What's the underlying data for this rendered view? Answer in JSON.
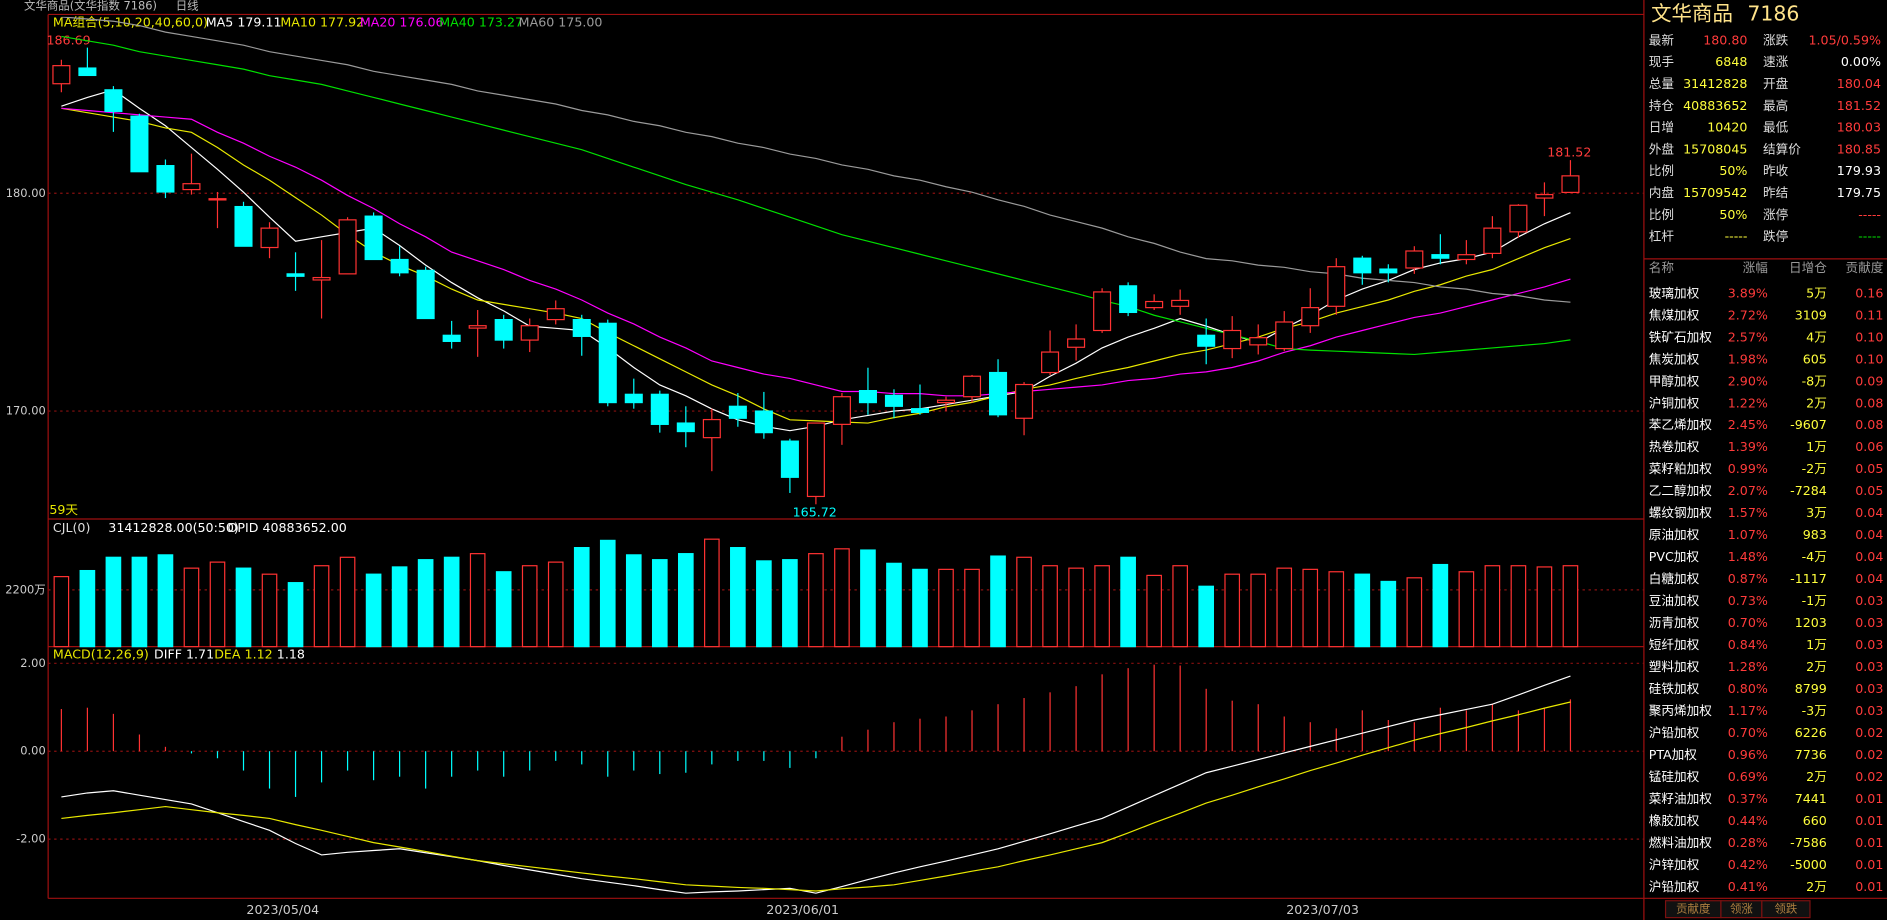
{
  "header": {
    "title": "文华商品(文华指数 7186)",
    "period": "日线"
  },
  "main_chart": {
    "legend_title": "MA组合(5,10,20,40,60,0)",
    "ylim": [
      165.1,
      188.1
    ],
    "yticks": [
      {
        "value": 180,
        "label": "180.00"
      },
      {
        "value": 170,
        "label": "170.00"
      }
    ],
    "annotations": {
      "high": "186.69",
      "last_high": "181.52",
      "low": "165.72",
      "days": "59天"
    },
    "candles": {
      "open": [
        185.03,
        185.75,
        184.75,
        183.54,
        181.27,
        180.17,
        179.7,
        179.39,
        177.51,
        176.3,
        176.02,
        176.3,
        178.95,
        176.96,
        176.46,
        173.48,
        173.81,
        174.2,
        173.26,
        174.2,
        174.2,
        174.03,
        170.77,
        170.77,
        169.45,
        168.78,
        170.22,
        170.0,
        168.62,
        166.08,
        169.39,
        170.94,
        170.72,
        170.11,
        170.39,
        170.66,
        171.77,
        169.67,
        171.77,
        172.93,
        173.7,
        175.75,
        174.75,
        174.81,
        173.48,
        172.87,
        173.04,
        172.87,
        173.92,
        174.81,
        177.02,
        176.52,
        176.57,
        177.18,
        176.96,
        177.24,
        178.23,
        179.78,
        180.04
      ],
      "high": [
        186.13,
        186.69,
        184.92,
        183.65,
        181.55,
        181.82,
        180.06,
        179.61,
        178.67,
        177.29,
        177.85,
        178.9,
        179.12,
        177.57,
        176.63,
        174.14,
        174.64,
        174.42,
        174.25,
        175.08,
        174.42,
        174.2,
        171.49,
        170.94,
        170.22,
        170.11,
        170.83,
        170.88,
        168.73,
        169.45,
        170.83,
        171.99,
        171.0,
        171.22,
        170.66,
        171.66,
        172.38,
        171.33,
        173.7,
        173.98,
        175.64,
        175.91,
        175.36,
        175.58,
        174.25,
        174.36,
        173.98,
        174.59,
        175.64,
        177.02,
        177.13,
        176.74,
        177.57,
        178.12,
        177.85,
        178.95,
        179.5,
        180.5,
        181.52
      ],
      "low": [
        184.64,
        185.41,
        182.82,
        180.99,
        179.78,
        179.94,
        178.4,
        177.57,
        177.02,
        175.52,
        174.25,
        176.3,
        176.96,
        176.19,
        174.25,
        172.87,
        172.49,
        172.87,
        172.71,
        173.98,
        172.54,
        170.22,
        170.11,
        169.01,
        168.34,
        167.24,
        169.28,
        168.73,
        166.24,
        165.72,
        168.45,
        169.83,
        169.67,
        169.83,
        170.0,
        170.39,
        169.72,
        168.89,
        171.66,
        172.32,
        173.59,
        174.36,
        174.64,
        174.42,
        172.15,
        172.43,
        172.6,
        172.76,
        173.59,
        174.42,
        175.8,
        175.91,
        176.3,
        176.74,
        176.74,
        177.02,
        177.96,
        178.95,
        180.03
      ],
      "close": [
        185.86,
        185.41,
        183.76,
        180.99,
        180.06,
        180.44,
        179.75,
        177.57,
        178.4,
        176.19,
        176.13,
        178.78,
        176.96,
        176.35,
        174.25,
        173.2,
        173.92,
        173.26,
        173.92,
        174.7,
        173.43,
        170.39,
        170.39,
        169.39,
        169.06,
        169.61,
        169.67,
        169.01,
        166.96,
        169.45,
        170.66,
        170.39,
        170.22,
        169.94,
        170.5,
        171.6,
        169.83,
        171.22,
        172.71,
        173.31,
        175.47,
        174.53,
        175.03,
        175.08,
        172.98,
        173.7,
        173.37,
        174.09,
        174.75,
        176.63,
        176.35,
        176.35,
        177.35,
        177.02,
        177.18,
        178.4,
        179.45,
        179.94,
        180.8
      ],
      "up_color": "#ff3232",
      "down_color": "#00ffff"
    },
    "series": [
      {
        "label": "MA5 179.11",
        "color": "#ffffff",
        "values": [
          184.0,
          184.4,
          184.75,
          183.9,
          183.1,
          182.1,
          181.1,
          180.05,
          178.9,
          177.8,
          178.0,
          178.2,
          178.4,
          177.6,
          176.7,
          175.9,
          175.2,
          174.6,
          173.9,
          173.8,
          173.7,
          172.9,
          172.0,
          171.2,
          170.7,
          170.1,
          169.6,
          169.3,
          169.1,
          169.3,
          169.6,
          169.8,
          170.0,
          170.1,
          170.3,
          170.5,
          170.7,
          170.9,
          171.6,
          172.2,
          172.9,
          173.4,
          173.8,
          174.25,
          173.9,
          173.5,
          173.15,
          173.8,
          174.4,
          175.1,
          175.6,
          176.0,
          176.5,
          176.8,
          177.0,
          177.3,
          178.0,
          178.6,
          179.11
        ]
      },
      {
        "label": "MA10 177.92",
        "color": "#e8e800",
        "values": [
          183.9,
          183.7,
          183.5,
          183.3,
          183.0,
          182.8,
          182.1,
          181.3,
          180.6,
          179.8,
          179.0,
          178.1,
          177.3,
          176.7,
          176.2,
          175.6,
          175.1,
          174.9,
          174.7,
          174.5,
          174.25,
          173.6,
          173.0,
          172.4,
          171.8,
          171.2,
          170.7,
          170.1,
          169.6,
          169.55,
          169.5,
          169.45,
          169.7,
          169.9,
          170.2,
          170.4,
          170.7,
          171.0,
          171.2,
          171.5,
          171.77,
          172.0,
          172.3,
          172.6,
          172.8,
          173.1,
          173.4,
          173.8,
          174.1,
          174.5,
          174.8,
          175.1,
          175.5,
          175.8,
          176.2,
          176.5,
          177.0,
          177.5,
          177.92
        ]
      },
      {
        "label": "MA20 176.06",
        "color": "#ff00ff",
        "values": [
          183.9,
          183.8,
          183.7,
          183.6,
          183.5,
          183.4,
          182.8,
          182.3,
          181.7,
          181.2,
          180.6,
          179.9,
          179.3,
          178.6,
          178.0,
          177.3,
          176.9,
          176.5,
          176.0,
          175.6,
          175.1,
          174.5,
          174.0,
          173.4,
          172.9,
          172.3,
          172.0,
          171.7,
          171.5,
          171.2,
          170.9,
          170.9,
          170.8,
          170.8,
          170.7,
          170.7,
          170.8,
          170.9,
          171.0,
          171.1,
          171.2,
          171.4,
          171.5,
          171.7,
          171.8,
          172.0,
          172.3,
          172.7,
          173.0,
          173.4,
          173.7,
          174.0,
          174.3,
          174.5,
          174.8,
          175.1,
          175.4,
          175.7,
          176.06
        ]
      },
      {
        "label": "MA40 173.27",
        "color": "#00e000",
        "values": [
          187.2,
          187.0,
          186.8,
          186.5,
          186.3,
          186.1,
          185.9,
          185.7,
          185.4,
          185.2,
          185.0,
          184.7,
          184.4,
          184.1,
          183.8,
          183.5,
          183.2,
          182.9,
          182.6,
          182.3,
          182.0,
          181.6,
          181.2,
          180.8,
          180.4,
          180.05,
          179.7,
          179.3,
          178.9,
          178.5,
          178.1,
          177.8,
          177.5,
          177.2,
          176.9,
          176.6,
          176.3,
          176.0,
          175.7,
          175.4,
          175.08,
          174.8,
          174.4,
          174.1,
          173.8,
          173.5,
          173.2,
          172.87,
          172.8,
          172.75,
          172.7,
          172.65,
          172.6,
          172.7,
          172.8,
          172.9,
          173.0,
          173.1,
          173.27
        ]
      },
      {
        "label": "MA60 175.00",
        "color": "#9a9a9a",
        "values": [
          188.1,
          188.0,
          187.9,
          187.7,
          187.4,
          187.2,
          187.0,
          186.8,
          186.5,
          186.3,
          186.1,
          185.9,
          185.6,
          185.4,
          185.2,
          185.0,
          184.7,
          184.5,
          184.3,
          184.1,
          183.8,
          183.6,
          183.3,
          183.1,
          182.8,
          182.6,
          182.3,
          182.1,
          181.8,
          181.6,
          181.3,
          181.1,
          180.8,
          180.6,
          180.3,
          180.05,
          179.7,
          179.4,
          179.0,
          178.7,
          178.4,
          178.0,
          177.7,
          177.3,
          177.0,
          176.9,
          176.7,
          176.6,
          176.4,
          176.3,
          176.1,
          176.0,
          175.9,
          175.7,
          175.6,
          175.4,
          175.3,
          175.1,
          175.0
        ]
      }
    ]
  },
  "volume_chart": {
    "title": "CJL(0)",
    "total": "31412828.00(50:50)",
    "opid": "OPID 40883652.00",
    "ylim": [
      0,
      4200
    ],
    "yticks": [
      {
        "value": 2200,
        "label": "2200万"
      }
    ],
    "values": [
      2714,
      2948,
      3463,
      3463,
      3557,
      3042,
      3276,
      3042,
      2808,
      2480,
      3136,
      3463,
      2808,
      3089,
      3370,
      3463,
      3604,
      2902,
      3136,
      3276,
      3838,
      4118,
      3557,
      3370,
      3604,
      4165,
      3838,
      3323,
      3370,
      3604,
      3791,
      3744,
      3229,
      2995,
      2995,
      2995,
      3510,
      3463,
      3136,
      3042,
      3136,
      3463,
      2761,
      3136,
      2340,
      2808,
      2808,
      3042,
      2995,
      2902,
      2808,
      2527,
      2668,
      3182,
      2902,
      3136,
      3136,
      3089,
      3136
    ]
  },
  "macd_chart": {
    "title": "MACD(12,26,9)",
    "ylim": [
      -3.32,
      2.16
    ],
    "yticks": [
      {
        "value": 2,
        "label": "2.00"
      },
      {
        "value": 0,
        "label": "0.00"
      },
      {
        "value": -2,
        "label": "-2.00"
      }
    ],
    "macd_label": "1.18",
    "macd": [
      0.96,
      0.99,
      0.85,
      0.38,
      0.1,
      -0.05,
      -0.16,
      -0.44,
      -0.85,
      -1.04,
      -0.71,
      -0.44,
      -0.66,
      -0.58,
      -0.85,
      -0.58,
      -0.44,
      -0.58,
      -0.44,
      -0.22,
      -0.3,
      -0.58,
      -0.44,
      -0.52,
      -0.49,
      -0.3,
      -0.22,
      -0.22,
      -0.38,
      -0.16,
      0.33,
      0.49,
      0.66,
      0.74,
      0.79,
      0.93,
      1.07,
      1.21,
      1.34,
      1.48,
      1.75,
      1.89,
      1.97,
      1.95,
      1.42,
      1.15,
      1.07,
      0.79,
      0.66,
      0.52,
      0.93,
      0.71,
      0.66,
      0.99,
      0.93,
      1.07,
      0.93,
      0.99,
      1.18
    ],
    "series": [
      {
        "label": "DIFF 1.71",
        "color": "#ffffff",
        "values": [
          -1.04,
          -0.95,
          -0.9,
          -1.0,
          -1.1,
          -1.2,
          -1.4,
          -1.6,
          -1.8,
          -2.1,
          -2.36,
          -2.3,
          -2.26,
          -2.22,
          -2.31,
          -2.4,
          -2.49,
          -2.6,
          -2.7,
          -2.8,
          -2.9,
          -2.98,
          -3.06,
          -3.15,
          -3.23,
          -3.2,
          -3.18,
          -3.15,
          -3.12,
          -3.23,
          -3.08,
          -2.92,
          -2.77,
          -2.63,
          -2.5,
          -2.36,
          -2.22,
          -2.05,
          -1.88,
          -1.7,
          -1.53,
          -1.27,
          -1.01,
          -0.75,
          -0.49,
          -0.34,
          -0.19,
          -0.04,
          0.11,
          0.26,
          0.41,
          0.56,
          0.71,
          0.83,
          0.95,
          1.07,
          1.28,
          1.5,
          1.71
        ]
      },
      {
        "label": "DEA 1.12",
        "color": "#e8e800",
        "values": [
          -1.53,
          -1.46,
          -1.4,
          -1.33,
          -1.26,
          -1.33,
          -1.4,
          -1.46,
          -1.53,
          -1.67,
          -1.8,
          -1.94,
          -2.08,
          -2.18,
          -2.28,
          -2.39,
          -2.49,
          -2.56,
          -2.63,
          -2.7,
          -2.77,
          -2.84,
          -2.9,
          -2.97,
          -3.04,
          -3.07,
          -3.1,
          -3.12,
          -3.15,
          -3.18,
          -3.13,
          -3.09,
          -3.04,
          -2.94,
          -2.84,
          -2.73,
          -2.63,
          -2.49,
          -2.36,
          -2.22,
          -2.08,
          -1.86,
          -1.63,
          -1.41,
          -1.18,
          -1.0,
          -0.81,
          -0.63,
          -0.44,
          -0.27,
          -0.09,
          0.08,
          0.25,
          0.4,
          0.54,
          0.69,
          0.83,
          0.98,
          1.12
        ]
      }
    ]
  },
  "x_axis": {
    "labels": [
      "2023/05/04",
      "2023/06/01",
      "2023/07/03"
    ]
  },
  "quote": {
    "name": "文华商品",
    "code": "7186",
    "rows": [
      [
        {
          "label": "最新",
          "value": "180.80",
          "color": "#ff3b3b"
        },
        {
          "label": "涨跌",
          "value": "1.05/0.59%",
          "color": "#ff3b3b"
        }
      ],
      [
        {
          "label": "现手",
          "value": "6848",
          "color": "#ffff3c"
        },
        {
          "label": "速涨",
          "value": "0.00%",
          "color": "#ffffff"
        }
      ],
      [
        {
          "label": "总量",
          "value": "31412828",
          "color": "#ffff3c"
        },
        {
          "label": "开盘",
          "value": "180.04",
          "color": "#ff3b3b"
        }
      ],
      [
        {
          "label": "持仓",
          "value": "40883652",
          "color": "#ffff3c"
        },
        {
          "label": "最高",
          "value": "181.52",
          "color": "#ff3b3b"
        }
      ],
      [
        {
          "label": "日增",
          "value": "10420",
          "color": "#ffff3c"
        },
        {
          "label": "最低",
          "value": "180.03",
          "color": "#ff3b3b"
        }
      ],
      [
        {
          "label": "外盘",
          "value": "15708045",
          "color": "#ffff3c"
        },
        {
          "label": "结算价",
          "value": "180.85",
          "color": "#ff3b3b"
        }
      ],
      [
        {
          "label": "比例",
          "value": "50%",
          "color": "#ffff3c"
        },
        {
          "label": "昨收",
          "value": "179.93",
          "color": "#ffffff"
        }
      ],
      [
        {
          "label": "内盘",
          "value": "15709542",
          "color": "#ffff3c"
        },
        {
          "label": "昨结",
          "value": "179.75",
          "color": "#ffffff"
        }
      ],
      [
        {
          "label": "比例",
          "value": "50%",
          "color": "#ffff3c"
        },
        {
          "label": "涨停",
          "value": "-----",
          "color": "#ff3b3b"
        }
      ],
      [
        {
          "label": "杠杆",
          "value": "-----",
          "color": "#ffff3c"
        },
        {
          "label": "跌停",
          "value": "-----",
          "color": "#00e000"
        }
      ]
    ]
  },
  "table": {
    "columns": [
      "名称",
      "涨幅",
      "日增仓",
      "贡献度"
    ],
    "rows": [
      [
        "玻璃加权",
        "3.89%",
        "5万",
        "0.16"
      ],
      [
        "焦煤加权",
        "2.72%",
        "3109",
        "0.11"
      ],
      [
        "铁矿石加权",
        "2.57%",
        "4万",
        "0.10"
      ],
      [
        "焦炭加权",
        "1.98%",
        "605",
        "0.10"
      ],
      [
        "甲醇加权",
        "2.90%",
        "-8万",
        "0.09"
      ],
      [
        "沪铜加权",
        "1.22%",
        "2万",
        "0.08"
      ],
      [
        "苯乙烯加权",
        "2.45%",
        "-9607",
        "0.08"
      ],
      [
        "热卷加权",
        "1.39%",
        "1万",
        "0.06"
      ],
      [
        "菜籽粕加权",
        "0.99%",
        "-2万",
        "0.05"
      ],
      [
        "乙二醇加权",
        "2.07%",
        "-7284",
        "0.05"
      ],
      [
        "螺纹钢加权",
        "1.57%",
        "3万",
        "0.04"
      ],
      [
        "原油加权",
        "1.07%",
        "983",
        "0.04"
      ],
      [
        "PVC加权",
        "1.48%",
        "-4万",
        "0.04"
      ],
      [
        "白糖加权",
        "0.87%",
        "-1117",
        "0.04"
      ],
      [
        "豆油加权",
        "0.73%",
        "-1万",
        "0.03"
      ],
      [
        "沥青加权",
        "0.70%",
        "1203",
        "0.03"
      ],
      [
        "短纤加权",
        "0.84%",
        "1万",
        "0.03"
      ],
      [
        "塑料加权",
        "1.28%",
        "2万",
        "0.03"
      ],
      [
        "硅铁加权",
        "0.80%",
        "8799",
        "0.03"
      ],
      [
        "聚丙烯加权",
        "1.17%",
        "-3万",
        "0.03"
      ],
      [
        "沪铅加权",
        "0.70%",
        "6226",
        "0.02"
      ],
      [
        "PTA加权",
        "0.96%",
        "7736",
        "0.02"
      ],
      [
        "锰硅加权",
        "0.69%",
        "2万",
        "0.02"
      ],
      [
        "菜籽油加权",
        "0.37%",
        "7441",
        "0.01"
      ],
      [
        "橡胶加权",
        "0.44%",
        "660",
        "0.01"
      ],
      [
        "燃料油加权",
        "0.28%",
        "-7586",
        "0.01"
      ],
      [
        "沪锌加权",
        "0.42%",
        "-5000",
        "0.01"
      ],
      [
        "沪铅加权",
        "0.41%",
        "2万",
        "0.01"
      ]
    ]
  },
  "tabs": [
    "贡献度",
    "领涨",
    "领跌"
  ]
}
